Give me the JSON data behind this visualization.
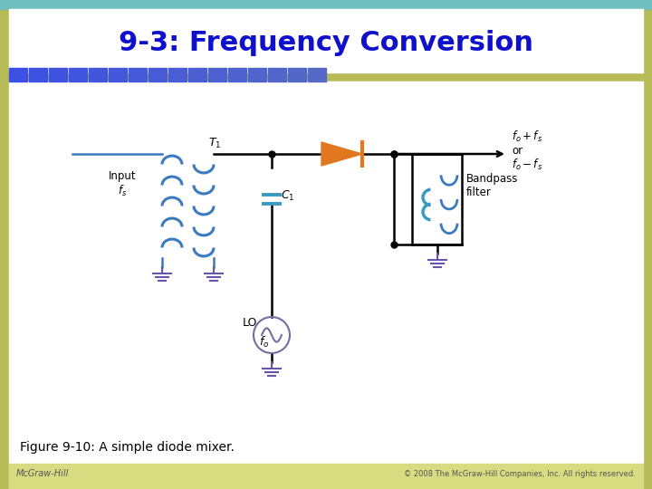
{
  "title": "9-3: Frequency Conversion",
  "title_color": "#1010cc",
  "title_fontsize": 22,
  "caption": "Figure 9-10: A simple diode mixer.",
  "footer_left": "McGraw-Hill",
  "footer_right": "© 2008 The McGraw-Hill Companies, Inc. All rights reserved.",
  "bg_color": "#ffffff",
  "stripe_color": "#4f81bd",
  "sidebar_left": "#b5c040",
  "sidebar_right": "#c8cc60",
  "coil_color": "#3a7abf",
  "wire_color": "#000000",
  "diode_color": "#e07820",
  "cap_color": "#3a9abf",
  "ground_color": "#6655aa",
  "lo_color": "#7070a0",
  "content_bg": "#ffffff",
  "header_bg": "#ffffff",
  "footer_bg": "#d8dc80"
}
